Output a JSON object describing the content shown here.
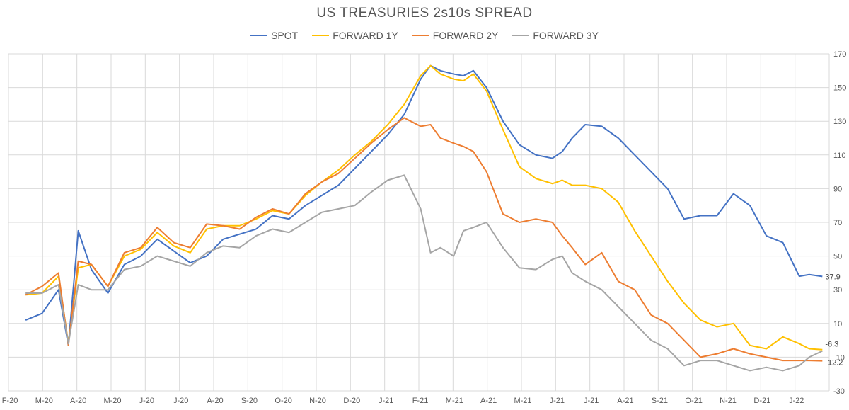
{
  "chart_data": {
    "type": "line",
    "title": "US TREASURIES 2s10s SPREAD",
    "xlabel": "",
    "ylabel": "",
    "ylim": [
      -30,
      170
    ],
    "y_ticks": [
      -30,
      -10,
      10,
      30,
      50,
      70,
      90,
      110,
      130,
      150,
      170
    ],
    "x_tick_labels": [
      "F-20",
      "M-20",
      "A-20",
      "M-20",
      "J-20",
      "J-20",
      "A-20",
      "S-20",
      "O-20",
      "N-20",
      "D-20",
      "J-21",
      "F-21",
      "M-21",
      "A-21",
      "M-21",
      "J-21",
      "J-21",
      "A-21",
      "S-21",
      "O-21",
      "N-21",
      "D-21",
      "J-22"
    ],
    "grid": true,
    "legend_position": "top",
    "x": [
      0,
      0.5,
      1,
      1.3,
      1.6,
      2,
      2.5,
      3,
      3.5,
      4,
      4.5,
      5,
      5.5,
      6,
      6.5,
      7,
      7.5,
      8,
      8.5,
      9,
      9.5,
      10,
      10.5,
      11,
      11.5,
      12,
      12.3,
      12.6,
      13,
      13.3,
      13.6,
      14,
      14.5,
      15,
      15.5,
      16,
      16.3,
      16.6,
      17,
      17.5,
      18,
      18.5,
      19,
      19.5,
      20,
      20.5,
      21,
      21.5,
      22,
      22.5,
      23,
      23.5,
      23.8,
      24.2
    ],
    "series": [
      {
        "name": "SPOT",
        "color": "#4472C4",
        "label": "37.9",
        "values": [
          12,
          16,
          30,
          -3,
          65,
          42,
          28,
          45,
          50,
          60,
          53,
          46,
          50,
          60,
          63,
          66,
          74,
          72,
          80,
          86,
          92,
          102,
          112,
          122,
          134,
          155,
          163,
          160,
          158,
          157,
          160,
          150,
          130,
          116,
          110,
          108,
          112,
          120,
          128,
          127,
          120,
          110,
          100,
          90,
          72,
          74,
          74,
          87,
          80,
          62,
          58,
          38,
          39,
          37.9
        ]
      },
      {
        "name": "FORWARD 1Y",
        "color": "#FFC000",
        "label": "",
        "values": [
          27,
          28,
          38,
          -2,
          43,
          45,
          32,
          50,
          54,
          64,
          56,
          52,
          66,
          68,
          68,
          72,
          77,
          75,
          86,
          94,
          101,
          110,
          118,
          128,
          140,
          157,
          163,
          158,
          155,
          154,
          158,
          148,
          125,
          103,
          96,
          93,
          95,
          92,
          92,
          90,
          82,
          65,
          50,
          35,
          22,
          12,
          8,
          10,
          -3,
          -5,
          2,
          -2,
          -5,
          -5.5
        ]
      },
      {
        "name": "FORWARD 2Y",
        "color": "#ED7D31",
        "label": "-12.2",
        "values": [
          27,
          32,
          40,
          -3,
          47,
          45,
          32,
          52,
          55,
          67,
          58,
          55,
          69,
          68,
          66,
          73,
          78,
          75,
          87,
          94,
          99,
          108,
          117,
          125,
          132,
          127,
          128,
          120,
          117,
          115,
          112,
          100,
          75,
          70,
          72,
          70,
          62,
          55,
          45,
          52,
          35,
          30,
          15,
          10,
          0,
          -10,
          -8,
          -5,
          -8,
          -10,
          -12,
          -12,
          -12,
          -12.2
        ]
      },
      {
        "name": "FORWARD 3Y",
        "color": "#A5A5A5",
        "label": "-6.3",
        "values": [
          28,
          28,
          33,
          -2,
          33,
          30,
          30,
          42,
          44,
          50,
          47,
          44,
          52,
          56,
          55,
          62,
          66,
          64,
          70,
          76,
          78,
          80,
          88,
          95,
          98,
          78,
          52,
          55,
          50,
          65,
          67,
          70,
          55,
          43,
          42,
          48,
          50,
          40,
          35,
          30,
          20,
          10,
          0,
          -5,
          -15,
          -12,
          -12,
          -15,
          -18,
          -16,
          -18,
          -15,
          -10,
          -6.3
        ]
      }
    ]
  }
}
